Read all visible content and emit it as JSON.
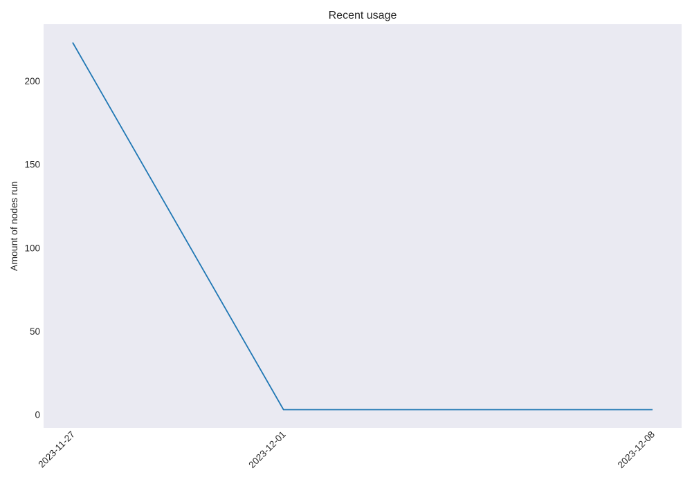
{
  "chart_data": {
    "type": "line",
    "title": "Recent usage",
    "xlabel": "",
    "ylabel": "Amount of nodes run",
    "x": [
      "2023-11-27",
      "2023-12-01",
      "2023-12-08"
    ],
    "series": [
      {
        "values": [
          223,
          3,
          3
        ],
        "color": "#1f77b4"
      }
    ],
    "xticks": [
      "2023-11-27",
      "2023-12-01",
      "2023-12-08"
    ],
    "yticks": [
      0,
      50,
      100,
      150,
      200
    ],
    "ylim": [
      -8,
      234
    ],
    "grid": false,
    "plot_background": "#eaeaf2"
  }
}
